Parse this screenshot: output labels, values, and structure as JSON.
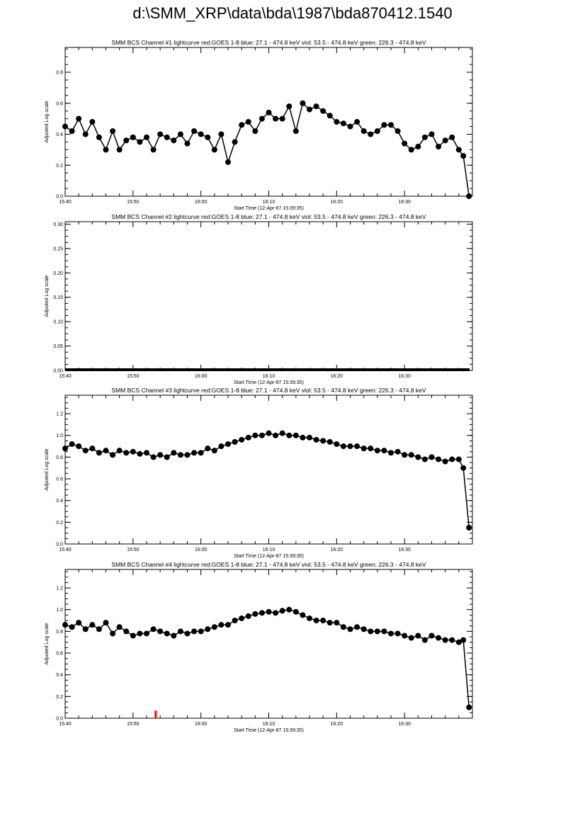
{
  "title": "d:\\SMM_XRP\\data\\bda\\1987\\bda870412.1540",
  "chart_data": [
    {
      "type": "line",
      "title": "SMM BCS Channel #1 lightcurve  red:GOES 1-8  blue: 27.1 - 474.8 keV  viol: 53.5 - 474.8 keV  green: 226.3 - 474.8 keV",
      "xlabel": "Start Time (12-Apr-87 15:39:35)",
      "ylabel": "Adjusted Log scale",
      "xlim": [
        "15:40",
        "16:40"
      ],
      "ylim": [
        0,
        0.96
      ],
      "yticks": [
        "0.0",
        "0.2",
        "0.4",
        "0.6",
        "0.8"
      ],
      "xticks": [
        "15:40",
        "15:50",
        "16:00",
        "16:10",
        "16:20",
        "16:30"
      ],
      "x": [
        "15:40",
        "15:41",
        "15:42",
        "15:43",
        "15:44",
        "15:45",
        "15:46",
        "15:47",
        "15:48",
        "15:49",
        "15:50",
        "15:51",
        "15:52",
        "15:53",
        "15:54",
        "15:55",
        "15:56",
        "15:57",
        "15:58",
        "15:59",
        "16:00",
        "16:01",
        "16:02",
        "16:03",
        "16:04",
        "16:05",
        "16:06",
        "16:07",
        "16:08",
        "16:09",
        "16:10",
        "16:11",
        "16:12",
        "16:13",
        "16:14",
        "16:15",
        "16:16",
        "16:17",
        "16:18",
        "16:19",
        "16:20",
        "16:21",
        "16:22",
        "16:23",
        "16:24",
        "16:25",
        "16:26",
        "16:27",
        "16:28",
        "16:29",
        "16:30",
        "16:31",
        "16:32",
        "16:33",
        "16:34",
        "16:35",
        "16:36",
        "16:37",
        "16:38",
        "16:38:40",
        "16:39:30"
      ],
      "values": [
        0.45,
        0.42,
        0.5,
        0.4,
        0.48,
        0.38,
        0.3,
        0.42,
        0.3,
        0.36,
        0.38,
        0.35,
        0.38,
        0.3,
        0.4,
        0.38,
        0.36,
        0.4,
        0.34,
        0.42,
        0.4,
        0.38,
        0.3,
        0.4,
        0.22,
        0.35,
        0.46,
        0.48,
        0.42,
        0.5,
        0.54,
        0.5,
        0.5,
        0.58,
        0.42,
        0.6,
        0.56,
        0.58,
        0.55,
        0.52,
        0.48,
        0.47,
        0.45,
        0.48,
        0.42,
        0.4,
        0.42,
        0.46,
        0.46,
        0.42,
        0.34,
        0.3,
        0.32,
        0.38,
        0.4,
        0.32,
        0.36,
        0.38,
        0.3,
        0.26,
        0.0
      ]
    },
    {
      "type": "line",
      "title": "SMM BCS Channel #2 lightcurve  red:GOES 1-8  blue: 27.1 - 474.8 keV  viol: 53.5 - 474.8 keV  green: 226.3 - 474.8 keV",
      "xlabel": "Start Time (12-Apr-87 15:39:35)",
      "ylabel": "Adjusted Log scale",
      "xlim": [
        "15:40",
        "16:40"
      ],
      "ylim": [
        0,
        0.305
      ],
      "yticks": [
        "0.00",
        "0.05",
        "0.10",
        "0.15",
        "0.20",
        "0.25",
        "0.30"
      ],
      "xticks": [
        "15:40",
        "15:50",
        "16:00",
        "16:10",
        "16:20",
        "16:30"
      ],
      "x": [
        "15:40",
        "16:39:30"
      ],
      "values": [
        0,
        0
      ]
    },
    {
      "type": "line",
      "title": "SMM BCS Channel #3 lightcurve  red:GOES 1-8  blue: 27.1 - 474.8 keV  viol: 53.5 - 474.8 keV  green: 226.3 - 474.8 keV",
      "xlabel": "Start Time (12-Apr-87 15:39:35)",
      "ylabel": "Adjusted Log scale",
      "xlim": [
        "15:40",
        "16:40"
      ],
      "ylim": [
        0,
        1.37
      ],
      "yticks": [
        "0.0",
        "0.2",
        "0.4",
        "0.6",
        "0.8",
        "1.0",
        "1.2"
      ],
      "xticks": [
        "15:40",
        "15:50",
        "16:00",
        "16:10",
        "16:20",
        "16:30"
      ],
      "x": [
        "15:40",
        "15:41",
        "15:42",
        "15:43",
        "15:44",
        "15:45",
        "15:46",
        "15:47",
        "15:48",
        "15:49",
        "15:50",
        "15:51",
        "15:52",
        "15:53",
        "15:54",
        "15:55",
        "15:56",
        "15:57",
        "15:58",
        "15:59",
        "16:00",
        "16:01",
        "16:02",
        "16:03",
        "16:04",
        "16:05",
        "16:06",
        "16:07",
        "16:08",
        "16:09",
        "16:10",
        "16:11",
        "16:12",
        "16:13",
        "16:14",
        "16:15",
        "16:16",
        "16:17",
        "16:18",
        "16:19",
        "16:20",
        "16:21",
        "16:22",
        "16:23",
        "16:24",
        "16:25",
        "16:26",
        "16:27",
        "16:28",
        "16:29",
        "16:30",
        "16:31",
        "16:32",
        "16:33",
        "16:34",
        "16:35",
        "16:36",
        "16:37",
        "16:38",
        "16:38:40",
        "16:39:30"
      ],
      "values": [
        0.88,
        0.92,
        0.9,
        0.86,
        0.88,
        0.84,
        0.86,
        0.82,
        0.86,
        0.84,
        0.85,
        0.83,
        0.84,
        0.8,
        0.82,
        0.8,
        0.84,
        0.82,
        0.82,
        0.84,
        0.84,
        0.88,
        0.86,
        0.9,
        0.92,
        0.94,
        0.96,
        0.98,
        1.0,
        1.0,
        1.02,
        1.0,
        1.02,
        1.0,
        1.0,
        0.98,
        0.98,
        0.96,
        0.95,
        0.94,
        0.92,
        0.9,
        0.9,
        0.9,
        0.88,
        0.88,
        0.86,
        0.86,
        0.84,
        0.85,
        0.82,
        0.82,
        0.8,
        0.78,
        0.8,
        0.78,
        0.76,
        0.78,
        0.78,
        0.7,
        0.15
      ]
    },
    {
      "type": "line",
      "title": "SMM BCS Channel #4 lightcurve  red:GOES 1-8  blue: 27.1 - 474.8 keV  viol: 53.5 - 474.8 keV  green: 226.3 - 474.8 keV",
      "xlabel": "Start Time (12-Apr-87 15:39:35)",
      "ylabel": "Adjusted Log scale",
      "xlim": [
        "15:40",
        "16:40"
      ],
      "ylim": [
        0,
        1.37
      ],
      "yticks": [
        "0.0",
        "0.2",
        "0.4",
        "0.6",
        "0.8",
        "1.0",
        "1.2"
      ],
      "xticks": [
        "15:40",
        "15:50",
        "16:00",
        "16:10",
        "16:20",
        "16:30"
      ],
      "x": [
        "15:40",
        "15:41",
        "15:42",
        "15:43",
        "15:44",
        "15:45",
        "15:46",
        "15:47",
        "15:48",
        "15:49",
        "15:50",
        "15:51",
        "15:52",
        "15:53",
        "15:54",
        "15:55",
        "15:56",
        "15:57",
        "15:58",
        "15:59",
        "16:00",
        "16:01",
        "16:02",
        "16:03",
        "16:04",
        "16:05",
        "16:06",
        "16:07",
        "16:08",
        "16:09",
        "16:10",
        "16:11",
        "16:12",
        "16:13",
        "16:14",
        "16:15",
        "16:16",
        "16:17",
        "16:18",
        "16:19",
        "16:20",
        "16:21",
        "16:22",
        "16:23",
        "16:24",
        "16:25",
        "16:26",
        "16:27",
        "16:28",
        "16:29",
        "16:30",
        "16:31",
        "16:32",
        "16:33",
        "16:34",
        "16:35",
        "16:36",
        "16:37",
        "16:38",
        "16:38:40",
        "16:39:30"
      ],
      "values": [
        0.86,
        0.84,
        0.88,
        0.82,
        0.86,
        0.82,
        0.88,
        0.78,
        0.84,
        0.8,
        0.76,
        0.78,
        0.78,
        0.82,
        0.8,
        0.78,
        0.76,
        0.8,
        0.78,
        0.8,
        0.8,
        0.82,
        0.84,
        0.86,
        0.86,
        0.9,
        0.92,
        0.94,
        0.96,
        0.97,
        0.98,
        0.97,
        0.99,
        1.0,
        0.98,
        0.95,
        0.92,
        0.9,
        0.9,
        0.88,
        0.88,
        0.84,
        0.82,
        0.84,
        0.82,
        0.8,
        0.8,
        0.8,
        0.78,
        0.78,
        0.76,
        0.74,
        0.76,
        0.72,
        0.76,
        0.74,
        0.72,
        0.72,
        0.7,
        0.72,
        0.1
      ]
    },
    {
      "type": "bar",
      "description_series": "red",
      "x": [
        "15:53:20"
      ],
      "values": [
        0.07
      ]
    }
  ],
  "colors": {
    "series": "#000000",
    "goes": "#ff0000"
  }
}
